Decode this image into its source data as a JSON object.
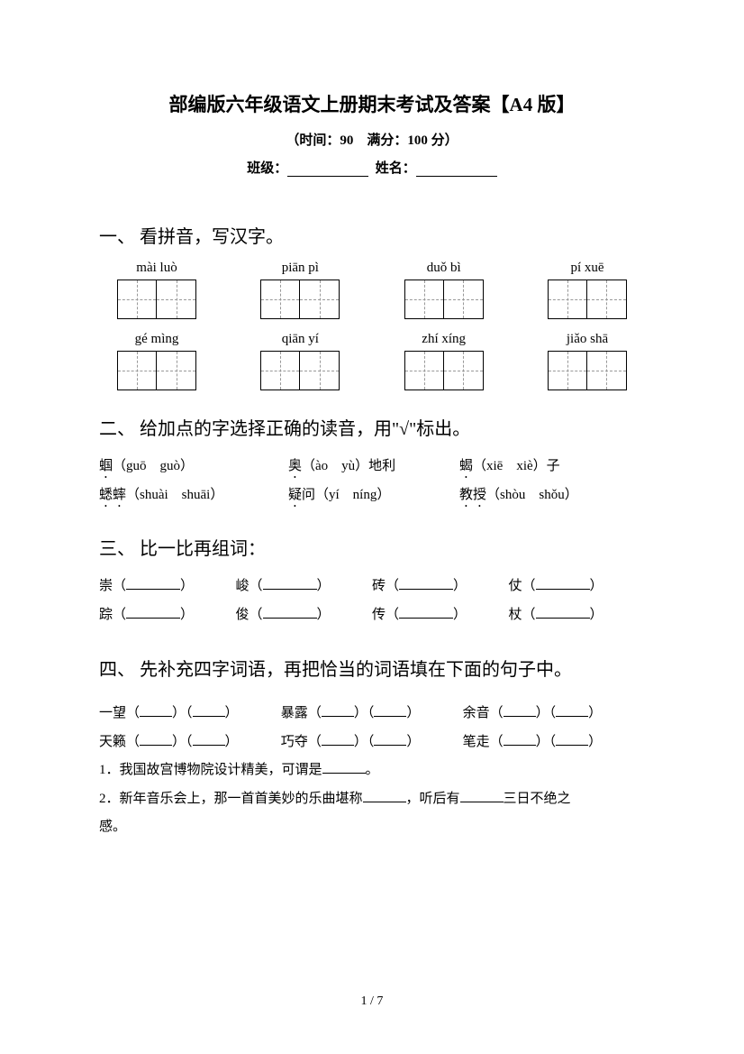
{
  "title": "部编版六年级语文上册期末考试及答案【A4 版】",
  "subtitle": "（时间：90　满分：100 分）",
  "info": {
    "class_label": "班级：",
    "name_label": "姓名："
  },
  "q1": {
    "heading": "一、 看拼音，写汉字。",
    "row1": [
      "mài luò",
      "piān pì",
      "duǒ bì",
      "pí xuē"
    ],
    "row2": [
      "gé mìng",
      "qiān yí",
      "zhí xíng",
      "jiǎo shā"
    ]
  },
  "q2": {
    "heading": "二、 给加点的字选择正确的读音，用\"√\"标出。",
    "r1": {
      "c1a": "蝈",
      "c1b": "（guō　guò）",
      "c2a": "奥",
      "c2b": "（ào　yù）地利",
      "c3a": "蝎",
      "c3b": "（xiē　xiè）子"
    },
    "r2": {
      "c1a": "蟋蟀",
      "c1b": "（shuài　shuāi）",
      "c2a": "疑",
      "c2b": "问（yí　níng）",
      "c3a": "教授",
      "c3b": "（shòu　shǒu）"
    }
  },
  "q3": {
    "heading": "三、 比一比再组词：",
    "r1": [
      "崇",
      "峻",
      "砖",
      "仗"
    ],
    "r2": [
      "踪",
      "俊",
      "传",
      "杖"
    ]
  },
  "q4": {
    "heading": "四、 先补充四字词语，再把恰当的词语填在下面的句子中。",
    "r1": [
      "一望",
      "暴露",
      "余音"
    ],
    "r2": [
      "天籁",
      "巧夺",
      "笔走"
    ],
    "s1": "1．我国故宫博物院设计精美，可谓是",
    "s1_end": "。",
    "s2a": "2．新年音乐会上，那一首首美妙的乐曲堪称",
    "s2b": "，听后有",
    "s2c": "三日不绝之",
    "s2d": "感。"
  },
  "pagenum": "1 / 7",
  "colors": {
    "text": "#000000",
    "bg": "#ffffff",
    "dash": "#999999"
  }
}
